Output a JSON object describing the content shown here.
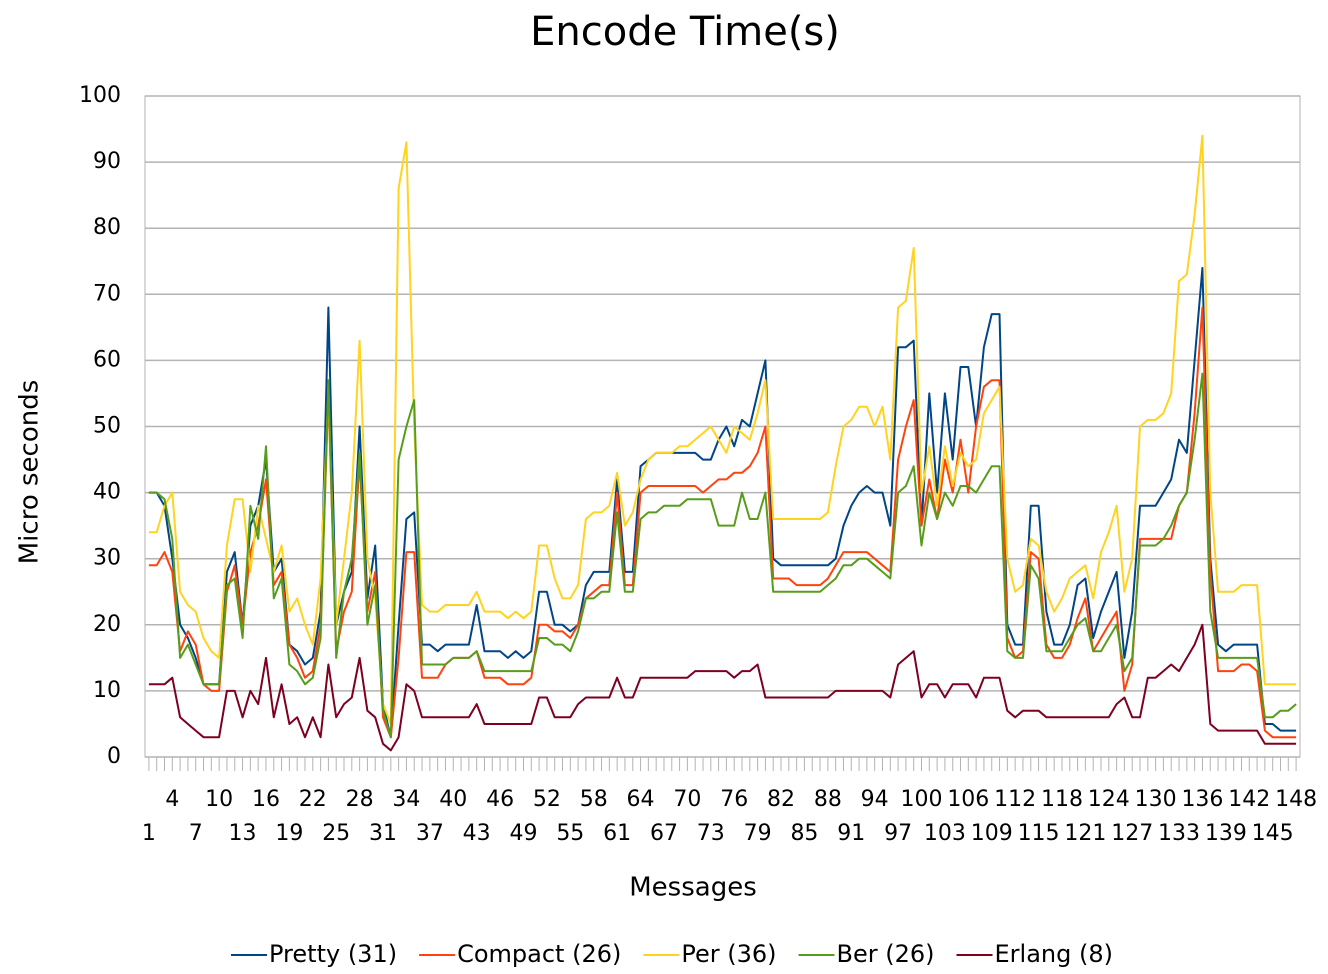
{
  "chart_data": {
    "type": "line",
    "title": "Encode Time(s)",
    "x_label": "Messages",
    "y_label": "Micro seconds",
    "categories": [
      1,
      null,
      null,
      4,
      null,
      null,
      7,
      null,
      null,
      10,
      null,
      null,
      13,
      null,
      null,
      16,
      null,
      null,
      19,
      null,
      null,
      22,
      null,
      null,
      25,
      null,
      null,
      28,
      null,
      null,
      31,
      null,
      null,
      34,
      null,
      null,
      37,
      null,
      null,
      40,
      null,
      null,
      43,
      null,
      null,
      46,
      null,
      null,
      49,
      null,
      null,
      52,
      null,
      null,
      55,
      null,
      null,
      58,
      null,
      null,
      61,
      null,
      null,
      64,
      null,
      null,
      67,
      null,
      null,
      70,
      null,
      null,
      73,
      null,
      null,
      76,
      null,
      null,
      79,
      null,
      null,
      82,
      null,
      null,
      85,
      null,
      null,
      88,
      null,
      null,
      91,
      null,
      null,
      94,
      null,
      null,
      97,
      null,
      null,
      100,
      null,
      null,
      103,
      null,
      null,
      106,
      null,
      null,
      109,
      null,
      null,
      112,
      null,
      null,
      115,
      null,
      null,
      118,
      null,
      null,
      121,
      null,
      null,
      124,
      null,
      null,
      127,
      null,
      null,
      130,
      null,
      null,
      133,
      null,
      null,
      136,
      null,
      null,
      139,
      null,
      null,
      142,
      null,
      null,
      145,
      null,
      null,
      148
    ],
    "ylim": [
      0,
      100
    ],
    "yticks": [
      0,
      10,
      20,
      30,
      40,
      50,
      60,
      70,
      80,
      90,
      100
    ],
    "grid": true,
    "legend": "bottom",
    "series": [
      {
        "name": "Pretty (31)",
        "color": "#004586",
        "values": [
          40,
          40,
          38,
          30,
          20,
          18,
          15,
          11,
          11,
          11,
          28,
          31,
          20,
          35,
          38,
          45,
          28,
          30,
          17,
          16,
          14,
          15,
          22,
          68,
          20,
          25,
          28,
          50,
          24,
          32,
          8,
          3,
          20,
          36,
          37,
          17,
          17,
          16,
          17,
          17,
          17,
          17,
          23,
          16,
          16,
          16,
          15,
          16,
          15,
          16,
          25,
          25,
          20,
          20,
          19,
          20,
          26,
          28,
          28,
          28,
          42,
          28,
          28,
          44,
          45,
          46,
          46,
          46,
          46,
          46,
          46,
          45,
          45,
          48,
          50,
          47,
          51,
          50,
          55,
          60,
          30,
          29,
          29,
          29,
          29,
          29,
          29,
          29,
          30,
          35,
          38,
          40,
          41,
          40,
          40,
          35,
          62,
          62,
          63,
          35,
          55,
          40,
          55,
          45,
          59,
          59,
          50,
          62,
          67,
          67,
          20,
          17,
          17,
          38,
          38,
          22,
          17,
          17,
          20,
          26,
          27,
          18,
          22,
          25,
          28,
          15,
          22,
          38,
          38,
          38,
          40,
          42,
          48,
          46,
          60,
          74,
          30,
          17,
          16,
          17,
          17,
          17,
          17,
          5,
          5,
          4,
          4,
          4
        ]
      },
      {
        "name": "Compact (26)",
        "color": "#ff420e",
        "values": [
          29,
          29,
          31,
          28,
          16,
          19,
          17,
          11,
          10,
          10,
          25,
          29,
          20,
          31,
          35,
          42,
          26,
          28,
          17,
          15,
          12,
          13,
          20,
          55,
          16,
          22,
          25,
          45,
          22,
          28,
          6,
          3,
          15,
          31,
          31,
          12,
          12,
          12,
          14,
          15,
          15,
          15,
          16,
          12,
          12,
          12,
          11,
          11,
          11,
          12,
          20,
          20,
          19,
          19,
          18,
          20,
          24,
          25,
          26,
          26,
          40,
          26,
          26,
          40,
          41,
          41,
          41,
          41,
          41,
          41,
          41,
          40,
          41,
          42,
          42,
          43,
          43,
          44,
          46,
          50,
          27,
          27,
          27,
          26,
          26,
          26,
          26,
          27,
          29,
          31,
          31,
          31,
          31,
          30,
          29,
          28,
          45,
          50,
          54,
          35,
          42,
          36,
          45,
          40,
          48,
          40,
          50,
          56,
          57,
          57,
          18,
          15,
          16,
          31,
          30,
          17,
          15,
          15,
          17,
          21,
          24,
          16,
          18,
          20,
          22,
          10,
          14,
          33,
          33,
          33,
          33,
          33,
          38,
          40,
          52,
          68,
          28,
          13,
          13,
          13,
          14,
          14,
          13,
          4,
          3,
          3,
          3,
          3
        ]
      },
      {
        "name": "Per (36)",
        "color": "#ffd320",
        "values": [
          34,
          34,
          38,
          40,
          25,
          23,
          22,
          18,
          16,
          15,
          32,
          39,
          39,
          28,
          38,
          33,
          28,
          32,
          22,
          24,
          20,
          17,
          27,
          55,
          20,
          30,
          40,
          63,
          30,
          24,
          8,
          5,
          86,
          93,
          50,
          23,
          22,
          22,
          23,
          23,
          23,
          23,
          25,
          22,
          22,
          22,
          21,
          22,
          21,
          22,
          32,
          32,
          27,
          24,
          24,
          26,
          36,
          37,
          37,
          38,
          43,
          35,
          37,
          42,
          45,
          46,
          46,
          46,
          47,
          47,
          48,
          49,
          50,
          48,
          46,
          50,
          49,
          48,
          52,
          57,
          36,
          36,
          36,
          36,
          36,
          36,
          36,
          37,
          44,
          50,
          51,
          53,
          53,
          50,
          53,
          45,
          68,
          69,
          77,
          40,
          47,
          38,
          47,
          41,
          46,
          44,
          45,
          52,
          54,
          56,
          30,
          25,
          26,
          33,
          32,
          25,
          22,
          24,
          27,
          28,
          29,
          24,
          31,
          34,
          38,
          25,
          30,
          50,
          51,
          51,
          52,
          55,
          72,
          73,
          82,
          94,
          40,
          25,
          25,
          25,
          26,
          26,
          26,
          11,
          11,
          11,
          11,
          11
        ]
      },
      {
        "name": "Ber (26)",
        "color": "#579d1c",
        "values": [
          40,
          40,
          39,
          33,
          15,
          17,
          14,
          11,
          11,
          11,
          26,
          27,
          18,
          38,
          33,
          47,
          24,
          27,
          14,
          13,
          11,
          12,
          18,
          57,
          15,
          25,
          30,
          46,
          20,
          26,
          7,
          3,
          45,
          50,
          54,
          14,
          14,
          14,
          14,
          15,
          15,
          15,
          16,
          13,
          13,
          13,
          13,
          13,
          13,
          13,
          18,
          18,
          17,
          17,
          16,
          19,
          24,
          24,
          25,
          25,
          37,
          25,
          25,
          36,
          37,
          37,
          38,
          38,
          38,
          39,
          39,
          39,
          39,
          35,
          35,
          35,
          40,
          36,
          36,
          40,
          25,
          25,
          25,
          25,
          25,
          25,
          25,
          26,
          27,
          29,
          29,
          30,
          30,
          29,
          28,
          27,
          40,
          41,
          44,
          32,
          40,
          36,
          40,
          38,
          41,
          41,
          40,
          42,
          44,
          44,
          16,
          15,
          15,
          29,
          27,
          16,
          16,
          16,
          18,
          20,
          21,
          16,
          16,
          18,
          20,
          13,
          15,
          32,
          32,
          32,
          33,
          35,
          38,
          40,
          48,
          58,
          22,
          15,
          15,
          15,
          15,
          15,
          15,
          6,
          6,
          7,
          7,
          8
        ]
      },
      {
        "name": "Erlang (8)",
        "color": "#7e0021",
        "values": [
          11,
          11,
          11,
          12,
          6,
          5,
          4,
          3,
          3,
          3,
          10,
          10,
          6,
          10,
          8,
          15,
          6,
          11,
          5,
          6,
          3,
          6,
          3,
          14,
          6,
          8,
          9,
          15,
          7,
          6,
          2,
          1,
          3,
          11,
          10,
          6,
          6,
          6,
          6,
          6,
          6,
          6,
          8,
          5,
          5,
          5,
          5,
          5,
          5,
          5,
          9,
          9,
          6,
          6,
          6,
          8,
          9,
          9,
          9,
          9,
          12,
          9,
          9,
          12,
          12,
          12,
          12,
          12,
          12,
          12,
          13,
          13,
          13,
          13,
          13,
          12,
          13,
          13,
          14,
          9,
          9,
          9,
          9,
          9,
          9,
          9,
          9,
          9,
          10,
          10,
          10,
          10,
          10,
          10,
          10,
          9,
          14,
          15,
          16,
          9,
          11,
          11,
          9,
          11,
          11,
          11,
          9,
          12,
          12,
          12,
          7,
          6,
          7,
          7,
          7,
          6,
          6,
          6,
          6,
          6,
          6,
          6,
          6,
          6,
          8,
          9,
          6,
          6,
          12,
          12,
          13,
          14,
          13,
          15,
          17,
          20,
          5,
          4,
          4,
          4,
          4,
          4,
          4,
          2,
          2,
          2,
          2,
          2
        ]
      }
    ]
  }
}
